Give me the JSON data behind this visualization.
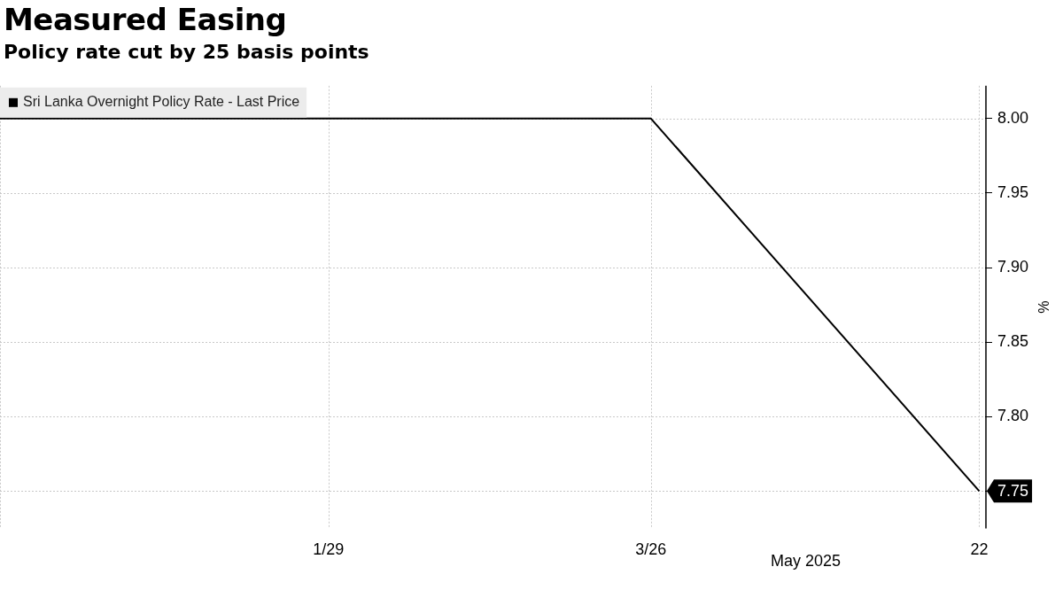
{
  "chart_data": {
    "type": "line",
    "title": "Measured Easing",
    "subtitle": "Policy rate cut by 25 basis points",
    "ylabel": "%",
    "x": [
      "2024-12-03",
      "2025-03-26",
      "2025-05-22"
    ],
    "series": [
      {
        "name": "Sri Lanka Overnight Policy Rate - Last Price",
        "color": "#000000",
        "values": [
          8.0,
          8.0,
          7.75
        ],
        "value_labels": [
          null,
          null,
          "7.75"
        ]
      }
    ],
    "xlim": [
      "2024-12-03",
      "2025-05-23"
    ],
    "xticks": [
      {
        "value": "2025-01-29",
        "label": "1/29"
      },
      {
        "value": "2025-03-26",
        "label": "3/26"
      },
      {
        "value": "2025-05-22",
        "label": "22"
      }
    ],
    "ylim": [
      7.725,
      8.022
    ],
    "yticks": [
      {
        "value": 7.75,
        "label": null
      },
      {
        "value": 7.8,
        "label": "7.80"
      },
      {
        "value": 7.85,
        "label": "7.85"
      },
      {
        "value": 7.9,
        "label": "7.90"
      },
      {
        "value": 7.95,
        "label": "7.95"
      },
      {
        "value": 8.0,
        "label": "8.00"
      }
    ],
    "grid": true,
    "legend": "top left",
    "marker": "none",
    "line_style": "solid",
    "annotations": [
      "May 2025"
    ]
  }
}
